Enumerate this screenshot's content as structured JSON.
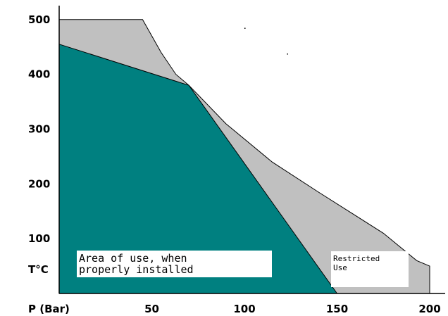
{
  "chart_data": {
    "type": "area",
    "title": "",
    "xlabel": "P (Bar)",
    "ylabel": "T°C",
    "xlim": [
      0,
      200
    ],
    "ylim": [
      0,
      510
    ],
    "x_ticks": [
      {
        "value": 50,
        "label": "50"
      },
      {
        "value": 100,
        "label": "100"
      },
      {
        "value": 150,
        "label": "150"
      },
      {
        "value": 200,
        "label": "200"
      }
    ],
    "y_ticks": [
      {
        "value": 100,
        "label": "100"
      },
      {
        "value": 200,
        "label": "200"
      },
      {
        "value": 300,
        "label": "300"
      },
      {
        "value": 400,
        "label": "400"
      },
      {
        "value": 500,
        "label": "500"
      }
    ],
    "grid": false,
    "series": [
      {
        "name": "Restricted Use",
        "color": "#c0c0c0",
        "points": [
          [
            0,
            500
          ],
          [
            45,
            500
          ],
          [
            55,
            440
          ],
          [
            63,
            400
          ],
          [
            70,
            380
          ],
          [
            90,
            310
          ],
          [
            115,
            240
          ],
          [
            140,
            185
          ],
          [
            175,
            110
          ],
          [
            193,
            60
          ],
          [
            200,
            50
          ],
          [
            200,
            0
          ],
          [
            0,
            0
          ]
        ]
      },
      {
        "name": "Area of use, when properly installed",
        "color": "#008080",
        "points": [
          [
            0,
            455
          ],
          [
            70,
            380
          ],
          [
            150,
            0
          ],
          [
            0,
            0
          ]
        ]
      }
    ],
    "annotations": [
      {
        "lines": [
          "Area of use, when",
          "properly installed"
        ],
        "region": "lower-left"
      },
      {
        "lines": [
          "Restricted",
          "Use"
        ],
        "region": "lower-right"
      }
    ],
    "stray_dots": [
      [
        100,
        485
      ],
      [
        123,
        438
      ]
    ]
  }
}
